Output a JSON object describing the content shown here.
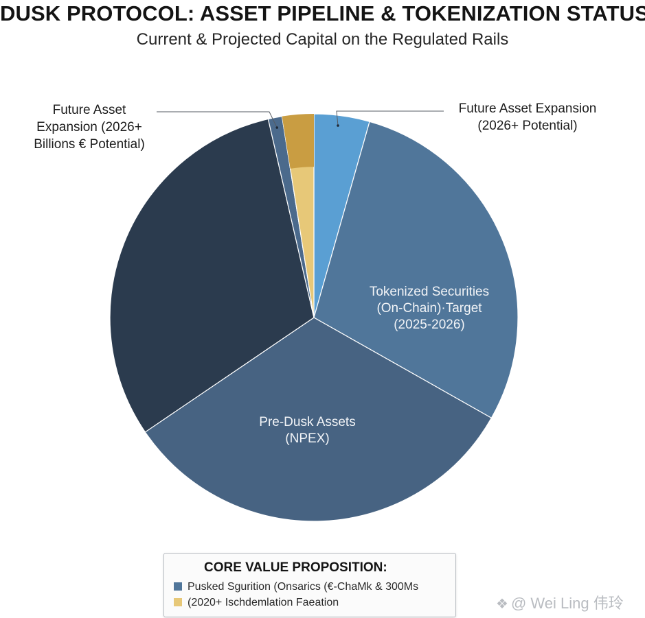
{
  "colors": {
    "pre_dusk": "#476382",
    "tokenized": "#50769a",
    "dark": "#2b3b4e",
    "future_small": "#4b6a8c",
    "gold": "#c99d42",
    "light_yellow": "#e7c878",
    "light_blue": "#5a9fd3"
  },
  "chart_data": {
    "type": "pie",
    "title": "DUSK PROTOCOL: ASSET PIPELINE & TOKENIZATION STATUS -",
    "subtitle": "Current & Projected Capital on the Regulated Rails",
    "start_angle_deg": 0,
    "direction": "clockwise",
    "slices": [
      {
        "label": "",
        "value": 4.4,
        "color": "#5a9fd3"
      },
      {
        "label": "Tokenized Securities (On-Chain)·Target (2025-2026)",
        "value": 28.8,
        "color": "#50769a"
      },
      {
        "label": "Pre-Dusk Assets (NPEX)",
        "value": 32.3,
        "color": "#476382"
      },
      {
        "label": "",
        "value": 30.9,
        "color": "#2b3b4e"
      },
      {
        "label": "",
        "value": 1.1,
        "color": "#4b6a8c"
      },
      {
        "label": "",
        "value": 2.5,
        "color": "#e7c878"
      }
    ],
    "legend_placement": "bottom"
  },
  "labels": {
    "tokenized_lines": [
      "Tokenized Securities",
      "(On-Chain)·Target",
      "(2025-2026)"
    ],
    "predusk_lines": [
      "Pre-Dusk Assets",
      "(NPEX)"
    ]
  },
  "callouts": {
    "left_lines": [
      "Future Asset",
      "Expansion (2026+",
      "Billions € Potential)"
    ],
    "right_lines": [
      "Future Asset Expansion",
      "(2026+ Potential)"
    ]
  },
  "legend": {
    "title": "CORE VALUE PROPOSITION:",
    "items": [
      {
        "text": "Pusked Sgurition (Onsarics (€-ChaMk & 300Ms",
        "color": "#50769a"
      },
      {
        "text": "(2020+ Ischdemlation Faeation",
        "color": "#e7c878"
      }
    ]
  },
  "watermark": {
    "icon": "diamond-grid-icon",
    "text": "@ Wei Ling 伟玲"
  }
}
